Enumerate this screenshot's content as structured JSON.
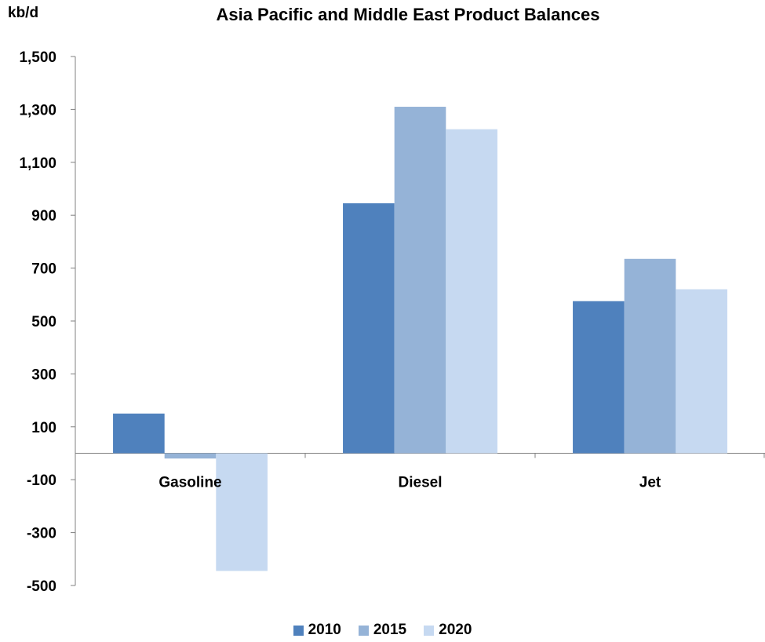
{
  "chart_data": {
    "type": "bar",
    "title": "Asia Pacific and Middle East Product Balances",
    "ylabel": "kb/d",
    "xlabel": "",
    "categories": [
      "Gasoline",
      "Diesel",
      "Jet"
    ],
    "series": [
      {
        "name": "2010",
        "color": "#4F81BD",
        "values": [
          150,
          945,
          575
        ]
      },
      {
        "name": "2015",
        "color": "#95B3D7",
        "values": [
          -20,
          1310,
          735
        ]
      },
      {
        "name": "2020",
        "color": "#C6D9F1",
        "values": [
          -445,
          1225,
          620
        ]
      }
    ],
    "ylim": [
      -500,
      1500
    ],
    "yticks": [
      -500,
      -300,
      -100,
      100,
      300,
      500,
      700,
      900,
      1100,
      1300,
      1500
    ],
    "ytick_labels": [
      "-500",
      "-300",
      "-100",
      "100",
      "300",
      "500",
      "700",
      "900",
      "1,100",
      "1,300",
      "1,500"
    ],
    "grid": false,
    "legend_position": "bottom-center"
  }
}
